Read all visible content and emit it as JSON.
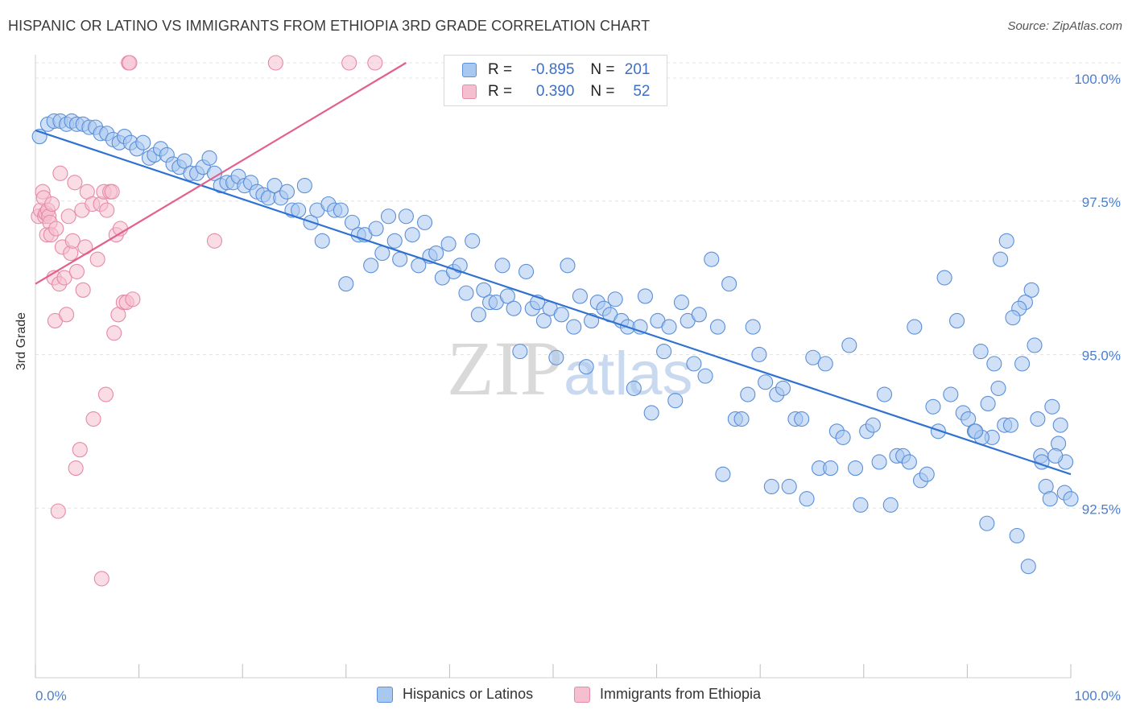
{
  "header": {
    "title": "HISPANIC OR LATINO VS IMMIGRANTS FROM ETHIOPIA 3RD GRADE CORRELATION CHART",
    "source": "Source: ZipAtlas.com"
  },
  "watermark": {
    "zip": "ZIP",
    "atlas": "atlas"
  },
  "colors": {
    "blue_fill": "#a9c8f0",
    "blue_stroke": "#5b8fd8",
    "blue_line": "#2f72d2",
    "pink_fill": "#f6bfd0",
    "pink_stroke": "#e58aa8",
    "pink_line": "#e3608b",
    "tick_text": "#4a7fcf"
  },
  "legend": {
    "rows": [
      {
        "r_label": "R =",
        "r_value": "-0.895",
        "n_label": "N =",
        "n_value": "201"
      },
      {
        "r_label": "R =",
        "r_value": "0.390",
        "n_label": "N =",
        "n_value": "52"
      }
    ]
  },
  "bottom_legend": [
    "Hispanics or Latinos",
    "Immigrants from Ethiopia"
  ],
  "chart_data": {
    "type": "scatter",
    "title": "HISPANIC OR LATINO VS IMMIGRANTS FROM ETHIOPIA 3RD GRADE CORRELATION CHART",
    "xlabel": "",
    "ylabel": "3rd Grade",
    "xlim": [
      0,
      100
    ],
    "ylim": [
      90.3,
      100.2
    ],
    "x_tick_labels": [
      "0.0%",
      "100.0%"
    ],
    "y_ticks": [
      92.5,
      95.0,
      97.5,
      100.0
    ],
    "y_tick_labels": [
      "92.5%",
      "95.0%",
      "97.5%",
      "100.0%"
    ],
    "grid": true,
    "series": [
      {
        "name": "Hispanics or Latinos",
        "R": -0.895,
        "N": 201,
        "trend": {
          "x": [
            0,
            100
          ],
          "y": [
            98.9,
            93.3
          ]
        },
        "points": [
          [
            0.4,
            98.8
          ],
          [
            1.2,
            99.0
          ],
          [
            1.8,
            99.05
          ],
          [
            2.4,
            99.05
          ],
          [
            3.0,
            99.0
          ],
          [
            3.5,
            99.05
          ],
          [
            4.0,
            99.0
          ],
          [
            4.6,
            99.0
          ],
          [
            5.2,
            98.95
          ],
          [
            5.8,
            98.95
          ],
          [
            6.3,
            98.85
          ],
          [
            6.9,
            98.85
          ],
          [
            7.5,
            98.75
          ],
          [
            8.1,
            98.7
          ],
          [
            8.6,
            98.8
          ],
          [
            9.2,
            98.7
          ],
          [
            9.8,
            98.6
          ],
          [
            10.4,
            98.7
          ],
          [
            11.0,
            98.45
          ],
          [
            11.5,
            98.5
          ],
          [
            12.1,
            98.6
          ],
          [
            12.7,
            98.5
          ],
          [
            13.3,
            98.35
          ],
          [
            13.9,
            98.3
          ],
          [
            14.4,
            98.4
          ],
          [
            15.0,
            98.2
          ],
          [
            15.6,
            98.2
          ],
          [
            16.2,
            98.3
          ],
          [
            16.8,
            98.45
          ],
          [
            17.3,
            98.2
          ],
          [
            17.9,
            98.0
          ],
          [
            18.5,
            98.05
          ],
          [
            19.1,
            98.05
          ],
          [
            19.6,
            98.15
          ],
          [
            20.2,
            98.0
          ],
          [
            20.8,
            98.05
          ],
          [
            21.4,
            97.9
          ],
          [
            22.0,
            97.85
          ],
          [
            22.5,
            97.8
          ],
          [
            23.1,
            98.0
          ],
          [
            23.7,
            97.8
          ],
          [
            24.3,
            97.9
          ],
          [
            24.8,
            97.6
          ],
          [
            25.4,
            97.6
          ],
          [
            26.0,
            98.0
          ],
          [
            26.6,
            97.4
          ],
          [
            27.2,
            97.6
          ],
          [
            27.7,
            97.1
          ],
          [
            28.3,
            97.7
          ],
          [
            28.9,
            97.6
          ],
          [
            29.5,
            97.6
          ],
          [
            30.0,
            96.4
          ],
          [
            30.6,
            97.4
          ],
          [
            31.2,
            97.2
          ],
          [
            31.8,
            97.2
          ],
          [
            32.4,
            96.7
          ],
          [
            32.9,
            97.3
          ],
          [
            33.5,
            96.9
          ],
          [
            34.1,
            97.5
          ],
          [
            34.7,
            97.1
          ],
          [
            35.2,
            96.8
          ],
          [
            35.8,
            97.5
          ],
          [
            36.4,
            97.2
          ],
          [
            37.0,
            96.7
          ],
          [
            37.6,
            97.4
          ],
          [
            38.1,
            96.85
          ],
          [
            38.7,
            96.9
          ],
          [
            39.3,
            96.5
          ],
          [
            39.9,
            97.05
          ],
          [
            40.4,
            96.6
          ],
          [
            41.0,
            96.7
          ],
          [
            41.6,
            96.25
          ],
          [
            42.2,
            97.1
          ],
          [
            42.8,
            95.9
          ],
          [
            43.3,
            96.3
          ],
          [
            43.9,
            96.1
          ],
          [
            44.5,
            96.1
          ],
          [
            45.1,
            96.7
          ],
          [
            45.6,
            96.2
          ],
          [
            46.2,
            96.0
          ],
          [
            46.8,
            95.3
          ],
          [
            47.4,
            96.6
          ],
          [
            48.0,
            96.0
          ],
          [
            48.5,
            96.1
          ],
          [
            49.1,
            95.8
          ],
          [
            49.7,
            96.0
          ],
          [
            50.3,
            95.2
          ],
          [
            50.8,
            95.9
          ],
          [
            51.4,
            96.7
          ],
          [
            52.0,
            95.7
          ],
          [
            52.6,
            96.2
          ],
          [
            53.2,
            95.05
          ],
          [
            53.7,
            95.8
          ],
          [
            54.3,
            96.1
          ],
          [
            54.9,
            96.0
          ],
          [
            55.5,
            95.9
          ],
          [
            56.0,
            96.15
          ],
          [
            56.6,
            95.8
          ],
          [
            57.2,
            95.7
          ],
          [
            57.8,
            94.7
          ],
          [
            58.4,
            95.7
          ],
          [
            58.9,
            96.2
          ],
          [
            59.5,
            94.3
          ],
          [
            60.1,
            95.8
          ],
          [
            60.7,
            95.3
          ],
          [
            61.2,
            95.7
          ],
          [
            61.8,
            94.5
          ],
          [
            62.4,
            96.1
          ],
          [
            63.0,
            95.8
          ],
          [
            63.6,
            95.1
          ],
          [
            64.1,
            95.9
          ],
          [
            64.7,
            94.9
          ],
          [
            65.3,
            96.8
          ],
          [
            65.9,
            95.7
          ],
          [
            66.4,
            93.3
          ],
          [
            67.0,
            96.4
          ],
          [
            67.6,
            94.2
          ],
          [
            68.2,
            94.2
          ],
          [
            68.8,
            94.6
          ],
          [
            69.3,
            95.7
          ],
          [
            69.9,
            95.25
          ],
          [
            70.5,
            94.8
          ],
          [
            71.1,
            93.1
          ],
          [
            71.6,
            94.6
          ],
          [
            72.2,
            94.7
          ],
          [
            72.8,
            93.1
          ],
          [
            73.4,
            94.2
          ],
          [
            74.0,
            94.2
          ],
          [
            74.5,
            92.9
          ],
          [
            75.1,
            95.2
          ],
          [
            75.7,
            93.4
          ],
          [
            76.3,
            95.1
          ],
          [
            76.8,
            93.4
          ],
          [
            77.4,
            94.0
          ],
          [
            78.0,
            93.9
          ],
          [
            78.6,
            95.4
          ],
          [
            79.2,
            93.4
          ],
          [
            79.7,
            92.8
          ],
          [
            80.3,
            94.0
          ],
          [
            80.9,
            94.1
          ],
          [
            81.5,
            93.5
          ],
          [
            82.0,
            94.6
          ],
          [
            82.6,
            92.8
          ],
          [
            83.2,
            93.6
          ],
          [
            83.8,
            93.6
          ],
          [
            84.4,
            93.5
          ],
          [
            84.9,
            95.7
          ],
          [
            85.5,
            93.2
          ],
          [
            86.1,
            93.3
          ],
          [
            86.7,
            94.4
          ],
          [
            87.2,
            94.0
          ],
          [
            87.8,
            96.5
          ],
          [
            88.4,
            94.6
          ],
          [
            89.0,
            95.8
          ],
          [
            89.6,
            94.3
          ],
          [
            90.1,
            94.2
          ],
          [
            90.7,
            94.0
          ],
          [
            91.3,
            95.3
          ],
          [
            91.9,
            92.5
          ],
          [
            92.4,
            93.9
          ],
          [
            93.0,
            94.7
          ],
          [
            93.6,
            94.1
          ],
          [
            94.2,
            94.1
          ],
          [
            94.8,
            92.3
          ],
          [
            95.3,
            95.1
          ],
          [
            95.9,
            91.8
          ],
          [
            96.5,
            95.4
          ],
          [
            97.1,
            93.6
          ],
          [
            97.6,
            93.1
          ],
          [
            98.2,
            94.4
          ],
          [
            98.8,
            93.8
          ],
          [
            99.4,
            93.0
          ],
          [
            100.0,
            92.9
          ],
          [
            99.5,
            93.5
          ],
          [
            99.0,
            94.1
          ],
          [
            98.5,
            93.6
          ],
          [
            98.0,
            92.9
          ],
          [
            97.2,
            93.5
          ],
          [
            96.8,
            94.2
          ],
          [
            96.2,
            96.3
          ],
          [
            95.6,
            96.1
          ],
          [
            95.0,
            96.0
          ],
          [
            94.4,
            95.85
          ],
          [
            93.8,
            97.1
          ],
          [
            93.2,
            96.8
          ],
          [
            92.6,
            95.1
          ],
          [
            92.0,
            94.45
          ],
          [
            91.4,
            93.9
          ],
          [
            90.8,
            94.0
          ]
        ]
      },
      {
        "name": "Immigrants from Ethiopia",
        "R": 0.39,
        "N": 52,
        "trend": {
          "x": [
            0,
            35.8
          ],
          "y": [
            96.4,
            100.0
          ]
        },
        "points": [
          [
            0.3,
            97.5
          ],
          [
            0.5,
            97.6
          ],
          [
            0.7,
            97.9
          ],
          [
            0.8,
            97.8
          ],
          [
            0.9,
            97.5
          ],
          [
            1.0,
            97.55
          ],
          [
            1.1,
            97.2
          ],
          [
            1.2,
            97.6
          ],
          [
            1.3,
            97.5
          ],
          [
            1.4,
            97.4
          ],
          [
            1.5,
            97.2
          ],
          [
            1.6,
            97.7
          ],
          [
            1.8,
            96.5
          ],
          [
            1.9,
            95.8
          ],
          [
            2.0,
            97.3
          ],
          [
            2.2,
            92.7
          ],
          [
            2.3,
            96.4
          ],
          [
            2.4,
            98.2
          ],
          [
            2.6,
            97.0
          ],
          [
            2.8,
            96.5
          ],
          [
            3.0,
            95.9
          ],
          [
            3.2,
            97.5
          ],
          [
            3.4,
            96.9
          ],
          [
            3.6,
            97.1
          ],
          [
            3.8,
            98.05
          ],
          [
            3.9,
            93.4
          ],
          [
            4.0,
            96.6
          ],
          [
            4.3,
            93.7
          ],
          [
            4.5,
            97.6
          ],
          [
            4.6,
            96.3
          ],
          [
            4.8,
            97.0
          ],
          [
            5.0,
            97.9
          ],
          [
            5.5,
            97.7
          ],
          [
            5.6,
            94.2
          ],
          [
            6.0,
            96.8
          ],
          [
            6.3,
            97.7
          ],
          [
            6.4,
            91.6
          ],
          [
            6.6,
            97.9
          ],
          [
            6.8,
            94.6
          ],
          [
            6.9,
            97.6
          ],
          [
            7.2,
            97.9
          ],
          [
            7.4,
            97.9
          ],
          [
            7.6,
            95.6
          ],
          [
            7.8,
            97.2
          ],
          [
            8.0,
            95.9
          ],
          [
            8.2,
            97.3
          ],
          [
            8.5,
            96.1
          ],
          [
            8.8,
            96.1
          ],
          [
            9.0,
            100.0
          ],
          [
            9.1,
            100.0
          ],
          [
            9.4,
            96.15
          ],
          [
            17.3,
            97.1
          ],
          [
            23.2,
            100.0
          ],
          [
            30.3,
            100.0
          ],
          [
            32.8,
            100.0
          ]
        ]
      }
    ]
  }
}
